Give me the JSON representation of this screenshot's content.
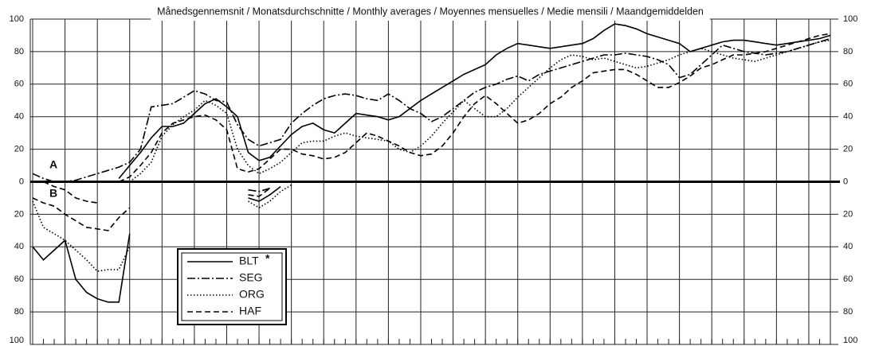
{
  "chart_data": {
    "type": "line",
    "title": "Månedsgennemsnit / Monatsdurchschnitte / Monthly averages / Moyennes mensuelles / Medie mensili / Maandgemiddelden",
    "annotations": [
      "A",
      "B"
    ],
    "legend_note": "*",
    "x": [
      0,
      1,
      2,
      3,
      4,
      5,
      6,
      7,
      8,
      9,
      10,
      11,
      12,
      13,
      14,
      15,
      16,
      17,
      18,
      19,
      20,
      21,
      22,
      23,
      24,
      25,
      26,
      27,
      28,
      29,
      30,
      31,
      32,
      33,
      34,
      35,
      36,
      37,
      38,
      39,
      40,
      41,
      42,
      43,
      44,
      45,
      46,
      47,
      48,
      49,
      50,
      51,
      52,
      53,
      54,
      55,
      56,
      57,
      58,
      59,
      60,
      61,
      62,
      63,
      64,
      65,
      66,
      67,
      68,
      69,
      70,
      71,
      72,
      73,
      74
    ],
    "xlim": [
      0,
      74
    ],
    "ylim": [
      -100,
      100
    ],
    "yticks": [
      100,
      80,
      60,
      40,
      20,
      0,
      {
        "value": -20,
        "label": "20"
      },
      {
        "value": -40,
        "label": "40"
      },
      {
        "value": -60,
        "label": "60"
      },
      {
        "value": -80,
        "label": "80"
      },
      {
        "value": -100,
        "label": "100"
      }
    ],
    "grid": true,
    "series": [
      {
        "name": "BLT",
        "color": "#000000",
        "dash": "solid",
        "values": [
          null,
          null,
          null,
          null,
          null,
          null,
          null,
          null,
          2,
          10,
          18,
          27,
          34,
          34,
          36,
          42,
          48,
          51,
          46,
          40,
          18,
          13,
          15,
          22,
          29,
          34,
          36,
          32,
          30,
          36,
          42,
          41,
          40,
          38,
          40,
          45,
          50,
          54,
          58,
          62,
          66,
          69,
          72,
          78,
          82,
          85,
          84,
          83,
          82,
          83,
          84,
          85,
          88,
          93,
          97,
          96,
          94,
          91,
          89,
          87,
          85,
          80,
          82,
          84,
          86,
          87,
          87,
          86,
          85,
          84,
          85,
          86,
          87,
          88,
          90
        ],
        "values_b": [
          -40,
          -48,
          -42,
          -36,
          -60,
          -68,
          -72,
          -74,
          -74,
          -32,
          null,
          null,
          null,
          null,
          null,
          null,
          null,
          null,
          null,
          null,
          -10,
          -12,
          -8,
          -3,
          null,
          null,
          null,
          null,
          null,
          null,
          null,
          null,
          null,
          null,
          null,
          null,
          null,
          null,
          null,
          null,
          null,
          null,
          null,
          null,
          null,
          null,
          null,
          null,
          null,
          null,
          null,
          null,
          null,
          null,
          null,
          null,
          null,
          null,
          null,
          null,
          null,
          null,
          null,
          null,
          null,
          null,
          null,
          null,
          null,
          null,
          null,
          null,
          null,
          null,
          null
        ]
      },
      {
        "name": "SEG",
        "color": "#000000",
        "dash": "dashdot",
        "values": [
          5,
          2,
          0,
          0,
          1,
          3,
          5,
          7,
          9,
          12,
          20,
          46,
          47,
          48,
          52,
          56,
          54,
          50,
          49,
          35,
          26,
          22,
          24,
          26,
          36,
          42,
          47,
          51,
          53,
          54,
          53,
          51,
          50,
          54,
          50,
          45,
          42,
          37,
          40,
          45,
          50,
          55,
          58,
          60,
          63,
          65,
          62,
          66,
          68,
          70,
          72,
          74,
          76,
          78,
          78,
          79,
          78,
          77,
          75,
          72,
          64,
          66,
          72,
          78,
          84,
          82,
          80,
          79,
          78,
          79,
          80,
          82,
          84,
          86,
          88
        ],
        "values_b": [
          null,
          null,
          null,
          null,
          null,
          null,
          null,
          null,
          null,
          null,
          null,
          null,
          null,
          null,
          null,
          null,
          null,
          null,
          null,
          null,
          -5,
          -6,
          -4,
          null,
          null,
          null,
          null,
          null,
          null,
          null,
          null,
          null,
          null,
          null,
          null,
          null,
          null,
          null,
          null,
          null,
          null,
          null,
          null,
          null,
          null,
          null,
          null,
          null,
          null,
          null,
          null,
          null,
          null,
          null,
          null,
          null,
          null,
          null,
          null,
          null,
          null,
          null,
          null,
          null,
          null,
          null,
          null,
          null,
          null,
          null,
          null,
          null,
          null,
          null,
          null
        ]
      },
      {
        "name": "ORG",
        "color": "#000000",
        "dash": "dotted",
        "values": [
          null,
          null,
          null,
          null,
          null,
          null,
          null,
          null,
          null,
          0,
          5,
          12,
          28,
          35,
          40,
          44,
          50,
          47,
          42,
          20,
          10,
          5,
          8,
          12,
          18,
          24,
          25,
          25,
          28,
          30,
          28,
          27,
          26,
          25,
          20,
          18,
          22,
          28,
          36,
          43,
          50,
          45,
          40,
          40,
          45,
          52,
          58,
          64,
          70,
          75,
          78,
          77,
          75,
          76,
          74,
          72,
          70,
          71,
          73,
          75,
          78,
          80,
          82,
          80,
          78,
          76,
          75,
          74,
          76,
          78,
          80,
          82,
          84,
          86,
          87
        ],
        "values_b": [
          -12,
          -28,
          -32,
          -36,
          -42,
          -48,
          -55,
          -54,
          -54,
          -40,
          null,
          null,
          null,
          null,
          null,
          null,
          null,
          null,
          null,
          null,
          -12,
          -16,
          -12,
          -6,
          -2,
          null,
          null,
          null,
          null,
          null,
          null,
          null,
          null,
          null,
          null,
          null,
          null,
          null,
          null,
          null,
          null,
          null,
          null,
          null,
          null,
          null,
          null,
          null,
          null,
          null,
          null,
          null,
          null,
          null,
          null,
          null,
          null,
          null,
          null,
          null,
          null,
          null,
          null,
          null,
          null,
          null,
          null,
          null,
          null,
          null,
          null,
          null,
          null,
          null,
          null
        ]
      },
      {
        "name": "HAF",
        "color": "#000000",
        "dash": "dashed",
        "values": [
          null,
          0,
          -3,
          -5,
          -10,
          -12,
          -13,
          null,
          0,
          3,
          10,
          18,
          30,
          36,
          38,
          40,
          41,
          38,
          32,
          8,
          6,
          8,
          14,
          20,
          20,
          17,
          16,
          14,
          15,
          18,
          24,
          30,
          28,
          25,
          22,
          18,
          16,
          17,
          22,
          30,
          40,
          48,
          53,
          48,
          42,
          36,
          38,
          42,
          48,
          52,
          58,
          62,
          67,
          68,
          69,
          69,
          66,
          62,
          58,
          58,
          61,
          65,
          70,
          72,
          75,
          78,
          78,
          79,
          80,
          82,
          84,
          86,
          88,
          90,
          91
        ],
        "values_b": [
          -10,
          -13,
          -15,
          -20,
          -24,
          -28,
          -29,
          -30,
          -22,
          -16,
          null,
          null,
          null,
          null,
          null,
          null,
          null,
          null,
          null,
          null,
          -8,
          -9,
          -4,
          null,
          null,
          null,
          null,
          null,
          null,
          null,
          null,
          null,
          null,
          null,
          null,
          null,
          null,
          null,
          null,
          null,
          null,
          null,
          null,
          null,
          null,
          null,
          null,
          null,
          null,
          null,
          null,
          null,
          null,
          null,
          null,
          null,
          null,
          null,
          null,
          null,
          null,
          null,
          null,
          null,
          null,
          null,
          null,
          null,
          null,
          null,
          null,
          null,
          null,
          null,
          null
        ]
      }
    ]
  }
}
